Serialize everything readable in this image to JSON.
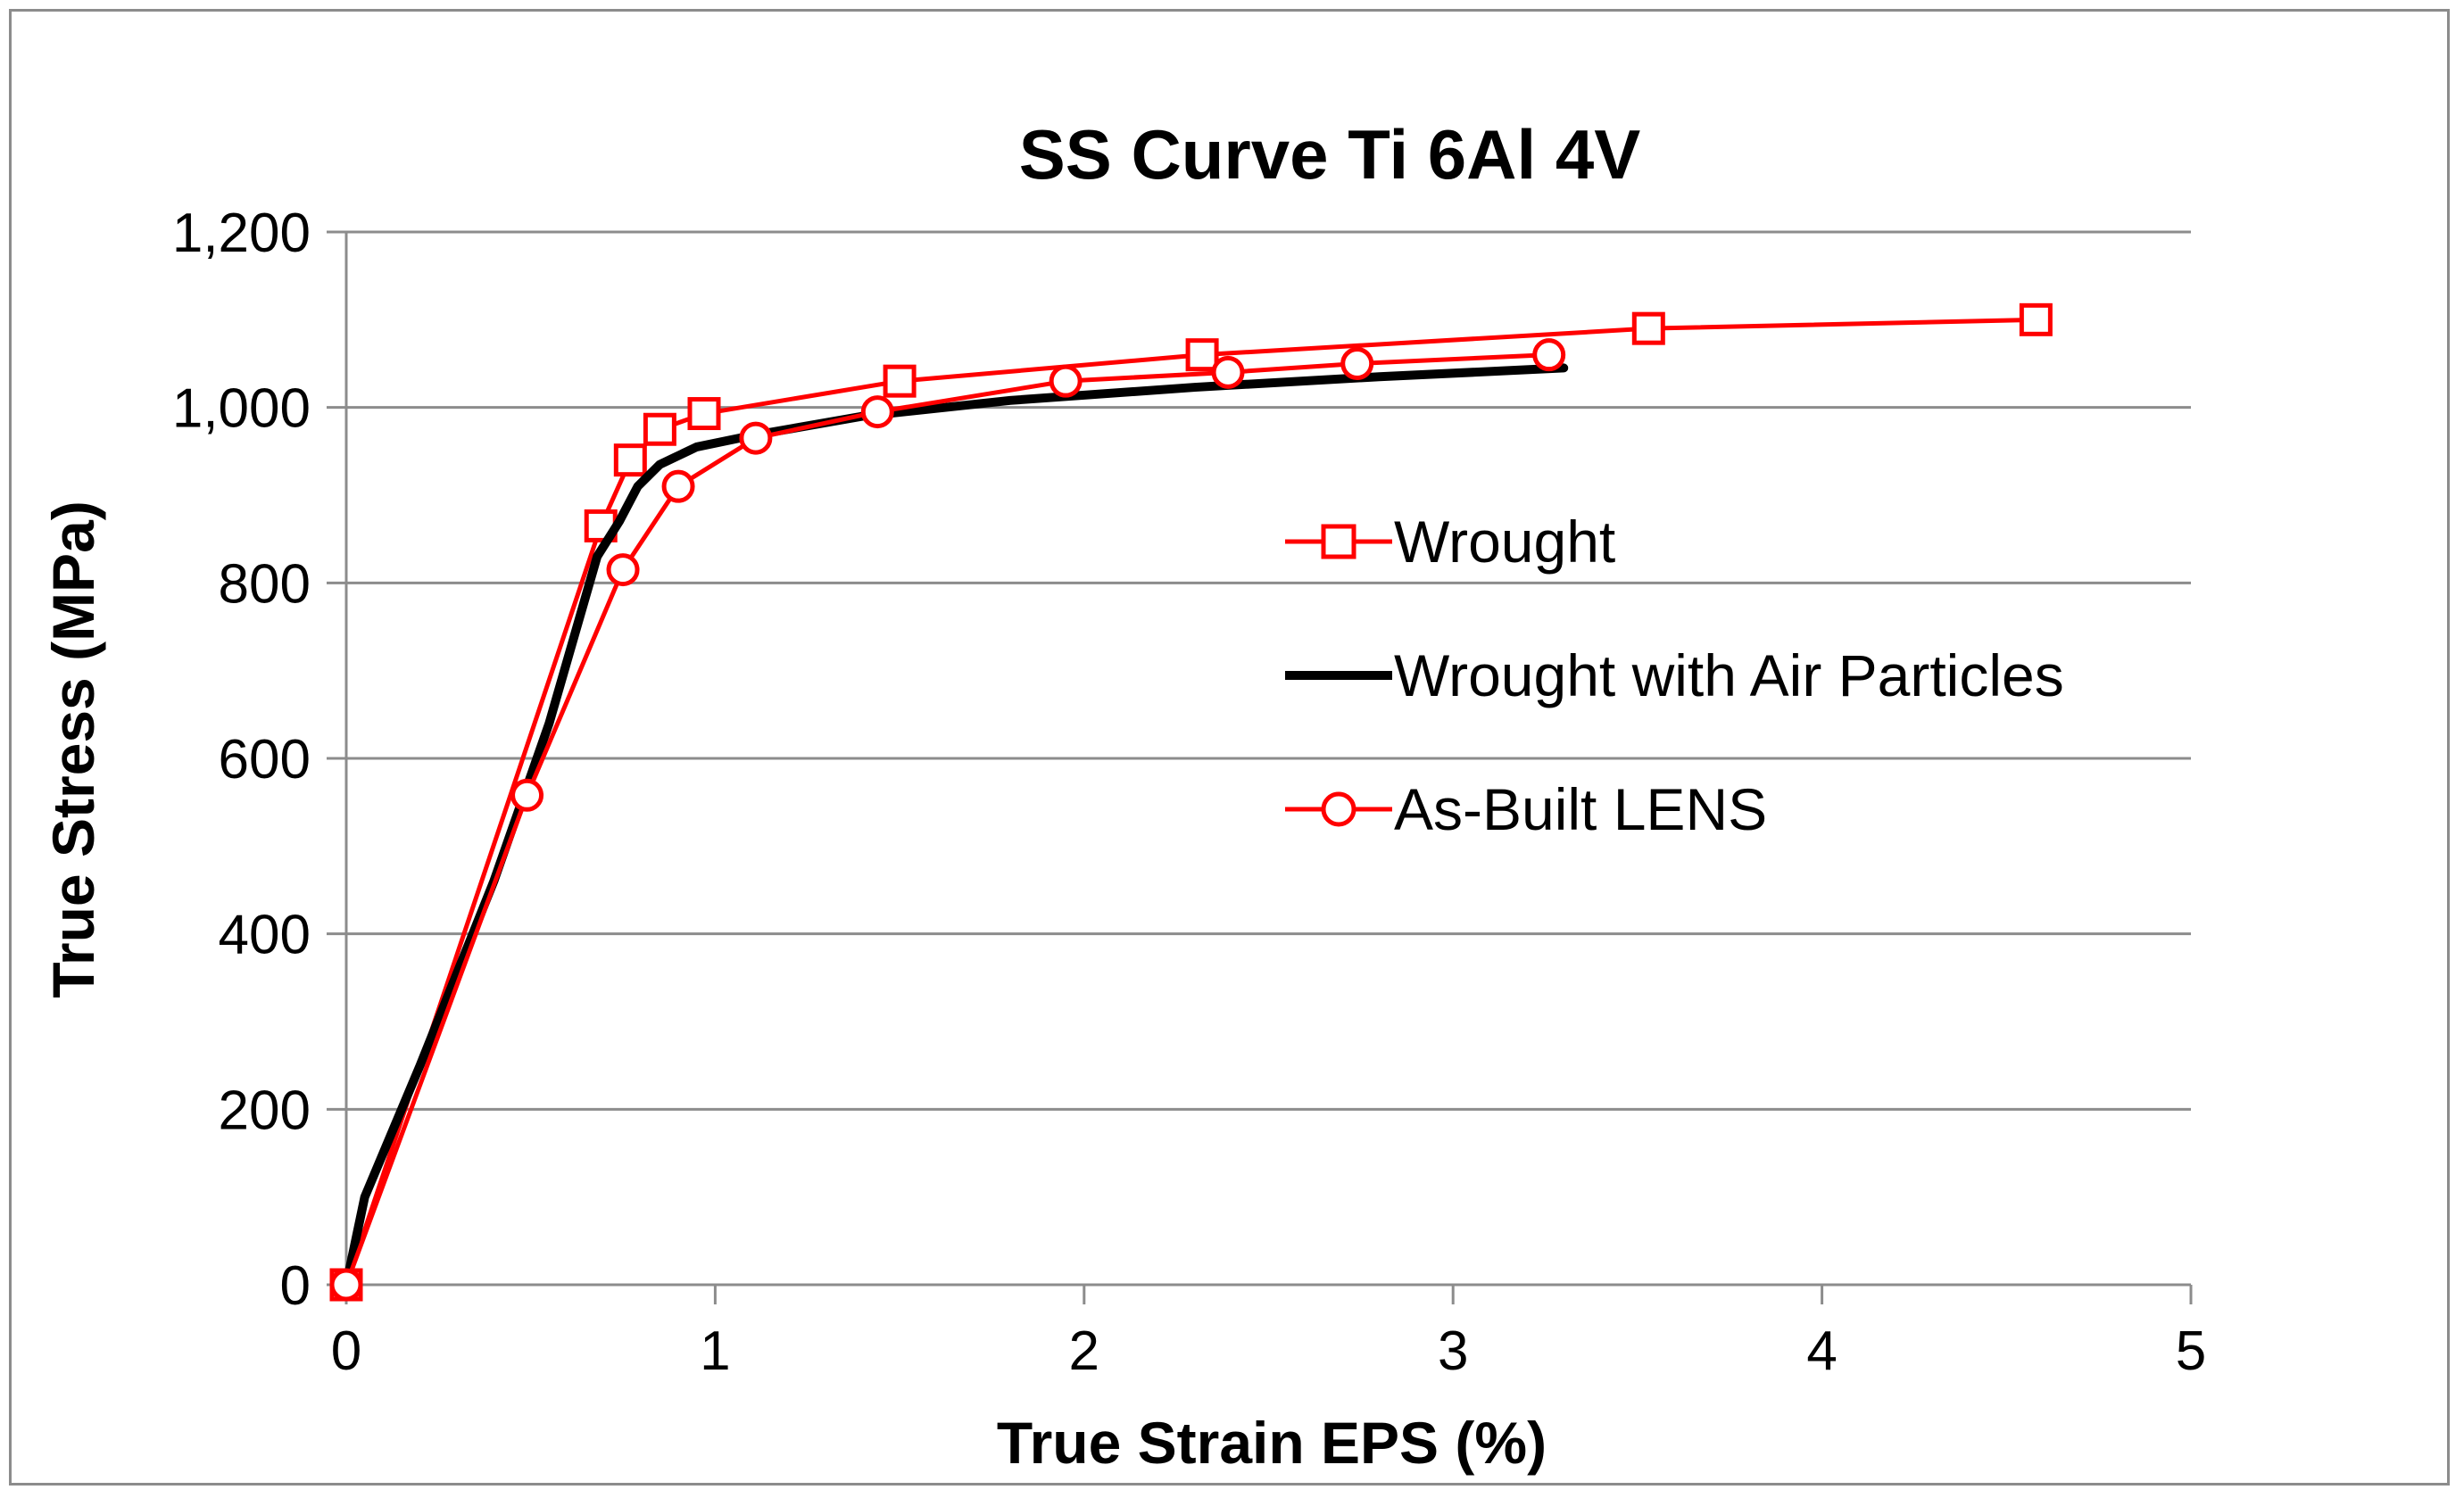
{
  "chart_data": {
    "type": "line",
    "title": "SS Curve Ti 6Al 4V",
    "xlabel": "True Strain EPS (%)",
    "ylabel": "True Stress (MPa)",
    "xlim": [
      0,
      5
    ],
    "ylim": [
      0,
      1200
    ],
    "x_ticks": [
      0,
      1,
      2,
      3,
      4,
      5
    ],
    "x_tick_labels": [
      "0",
      "1",
      "2",
      "3",
      "4",
      "5"
    ],
    "y_ticks": [
      0,
      200,
      400,
      600,
      800,
      1000,
      1200
    ],
    "y_tick_labels": [
      "0",
      "200",
      "400",
      "600",
      "800",
      "1,000",
      "1,200"
    ],
    "grid": "horizontal",
    "legend_position": "right-middle",
    "series": [
      {
        "name": "Wrought",
        "color": "#ff0000",
        "marker": "square",
        "x": [
          0,
          0.69,
          0.77,
          0.85,
          0.97,
          1.5,
          2.32,
          3.53,
          4.58
        ],
        "y": [
          0,
          865,
          940,
          975,
          993,
          1030,
          1060,
          1090,
          1100
        ]
      },
      {
        "name": "Wrought with Air Particles",
        "color": "#000000",
        "marker": "none",
        "x": [
          0,
          0.05,
          0.2,
          0.4,
          0.55,
          0.68,
          0.74,
          0.79,
          0.85,
          0.95,
          1.1,
          1.4,
          1.8,
          2.3,
          2.8,
          3.3
        ],
        "y": [
          0,
          100,
          250,
          460,
          640,
          830,
          870,
          910,
          935,
          955,
          968,
          990,
          1008,
          1023,
          1035,
          1045
        ]
      },
      {
        "name": "As-Built LENS",
        "color": "#ff0000",
        "marker": "circle",
        "x": [
          0,
          0.49,
          0.75,
          0.9,
          1.11,
          1.44,
          1.95,
          2.39,
          2.74,
          3.26
        ],
        "y": [
          0,
          558,
          815,
          910,
          965,
          995,
          1030,
          1040,
          1050,
          1060
        ]
      }
    ]
  }
}
